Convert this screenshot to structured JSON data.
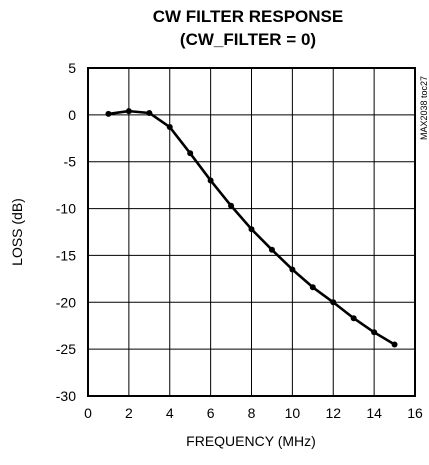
{
  "chart_data": {
    "type": "line",
    "title": "CW FILTER RESPONSE",
    "subtitle": "(CW_FILTER = 0)",
    "xlabel": "FREQUENCY (MHz)",
    "ylabel": "LOSS (dB)",
    "annotation": "MAX2038 toc27",
    "xlim": [
      0,
      16
    ],
    "ylim": [
      -30,
      5
    ],
    "xticks": [
      0,
      2,
      4,
      6,
      8,
      10,
      12,
      14,
      16
    ],
    "yticks": [
      5,
      0,
      -5,
      -10,
      -15,
      -20,
      -25,
      -30
    ],
    "grid": true,
    "series": [
      {
        "x": [
          1,
          2,
          3,
          4,
          5,
          6,
          7,
          8,
          9,
          10,
          11,
          12,
          13,
          14,
          15
        ],
        "y": [
          0.1,
          0.4,
          0.2,
          -1.3,
          -4.1,
          -7.0,
          -9.7,
          -12.2,
          -14.4,
          -16.5,
          -18.4,
          -20.0,
          -21.7,
          -23.2,
          -24.5
        ]
      }
    ]
  }
}
